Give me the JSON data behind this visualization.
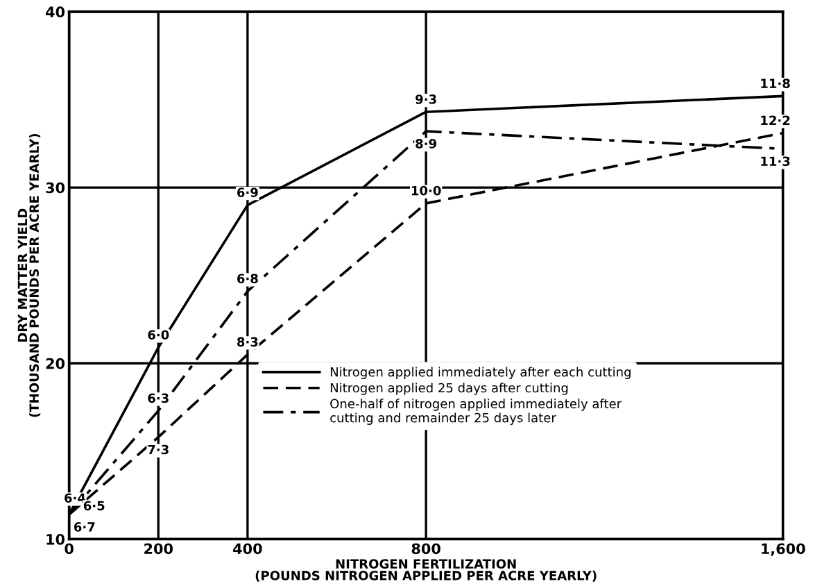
{
  "chart_data": {
    "type": "line",
    "xlabel": "NITROGEN FERTILIZATION\n(POUNDS NITROGEN APPLIED PER ACRE YEARLY)",
    "ylabel": "DRY MATTER YIELD\n(THOUSAND POUNDS PER ACRE YEARLY)",
    "x": [
      0,
      200,
      400,
      800,
      1600
    ],
    "series": [
      {
        "name": "Nitrogen applied immediately after each cutting",
        "color": "#000000",
        "line_style": "solid",
        "values": [
          11.4,
          20.9,
          29.0,
          34.3,
          35.2
        ]
      },
      {
        "name": "Nitrogen applied 25 days after cutting",
        "color": "#000000",
        "line_style": "dashed",
        "values": [
          11.4,
          15.8,
          20.5,
          29.1,
          33.1
        ]
      },
      {
        "name": "One-half of nitrogen applied immediately after\ncutting and remainder 25 days later",
        "color": "#000000",
        "line_style": "dashdot",
        "values": [
          11.4,
          17.3,
          24.1,
          33.2,
          32.2
        ]
      }
    ],
    "xlim": [
      0,
      1600
    ],
    "ylim": [
      10,
      40
    ],
    "xticks": [
      0,
      200,
      400,
      800,
      {
        "value": 1600,
        "label": "1,600"
      }
    ],
    "yticks": [
      10,
      20,
      30,
      40
    ],
    "grid": true,
    "legend": "bottom",
    "marker": "none",
    "annotations": [
      {
        "text": "6·4",
        "x": 0,
        "y": 11.4
      },
      {
        "text": "6·5",
        "x": 0,
        "y": 11.4
      },
      {
        "text": "6·7",
        "x": 0,
        "y": 11.4
      },
      {
        "text": "6·0",
        "x": 200,
        "y": 20.9
      },
      {
        "text": "6·3",
        "x": 200,
        "y": 17.3
      },
      {
        "text": "7·3",
        "x": 200,
        "y": 15.8
      },
      {
        "text": "6·9",
        "x": 400,
        "y": 29.0
      },
      {
        "text": "6·8",
        "x": 400,
        "y": 24.1
      },
      {
        "text": "8·3",
        "x": 400,
        "y": 20.5
      },
      {
        "text": "9·3",
        "x": 800,
        "y": 34.3
      },
      {
        "text": "8·9",
        "x": 800,
        "y": 33.2
      },
      {
        "text": "10·0",
        "x": 800,
        "y": 29.1
      },
      {
        "text": "11·8",
        "x": 1600,
        "y": 35.2
      },
      {
        "text": "12·2",
        "x": 1600,
        "y": 33.1
      },
      {
        "text": "11·3",
        "x": 1600,
        "y": 32.2
      }
    ]
  }
}
